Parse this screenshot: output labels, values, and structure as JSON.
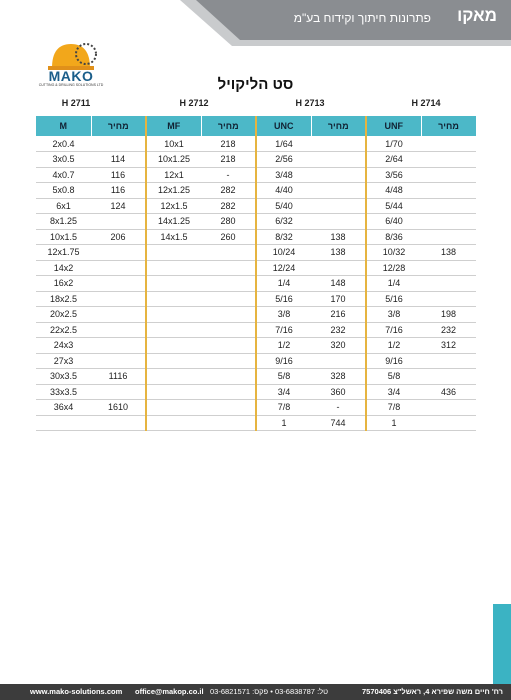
{
  "header": {
    "brand": "מאקו",
    "subtitle": "פתרונות חיתוך וקידוח בע\"מ",
    "colors": {
      "band": "#8a8d91",
      "band_light": "#c9cbcd",
      "accent": "#3bb3c3"
    }
  },
  "logo": {
    "word": "MAKO",
    "tagline": "CUTTING & DRILLING SOLUTIONS LTD"
  },
  "title": "סט הליקויל",
  "codes": [
    "H 2711",
    "H 2712",
    "H 2713",
    "H 2714"
  ],
  "table": {
    "headers": [
      "M",
      "מחיר",
      "MF",
      "מחיר",
      "UNC",
      "מחיר",
      "UNF",
      "מחיר"
    ],
    "rows": [
      [
        "2x0.4",
        "",
        "10x1",
        "218",
        "1/64",
        "",
        "1/70",
        ""
      ],
      [
        "3x0.5",
        "114",
        "10x1.25",
        "218",
        "2/56",
        "",
        "2/64",
        ""
      ],
      [
        "4x0.7",
        "116",
        "12x1",
        "-",
        "3/48",
        "",
        "3/56",
        ""
      ],
      [
        "5x0.8",
        "116",
        "12x1.25",
        "282",
        "4/40",
        "",
        "4/48",
        ""
      ],
      [
        "6x1",
        "124",
        "12x1.5",
        "282",
        "5/40",
        "",
        "5/44",
        ""
      ],
      [
        "8x1.25",
        "",
        "14x1.25",
        "280",
        "6/32",
        "",
        "6/40",
        ""
      ],
      [
        "10x1.5",
        "206",
        "14x1.5",
        "260",
        "8/32",
        "138",
        "8/36",
        ""
      ],
      [
        "12x1.75",
        "",
        "",
        "",
        "10/24",
        "138",
        "10/32",
        "138"
      ],
      [
        "14x2",
        "",
        "",
        "",
        "12/24",
        "",
        "12/28",
        ""
      ],
      [
        "16x2",
        "",
        "",
        "",
        "1/4",
        "148",
        "1/4",
        ""
      ],
      [
        "18x2.5",
        "",
        "",
        "",
        "5/16",
        "170",
        "5/16",
        ""
      ],
      [
        "20x2.5",
        "",
        "",
        "",
        "3/8",
        "216",
        "3/8",
        "198"
      ],
      [
        "22x2.5",
        "",
        "",
        "",
        "7/16",
        "232",
        "7/16",
        "232"
      ],
      [
        "24x3",
        "",
        "",
        "",
        "1/2",
        "320",
        "1/2",
        "312"
      ],
      [
        "27x3",
        "",
        "",
        "",
        "9/16",
        "",
        "9/16",
        ""
      ],
      [
        "30x3.5",
        "1116",
        "",
        "",
        "5/8",
        "328",
        "5/8",
        ""
      ],
      [
        "33x3.5",
        "",
        "",
        "",
        "3/4",
        "360",
        "3/4",
        "436"
      ],
      [
        "36x4",
        "1610",
        "",
        "",
        "7/8",
        "-",
        "7/8",
        ""
      ],
      [
        "",
        "",
        "",
        "",
        "1",
        "744",
        "1",
        ""
      ]
    ]
  },
  "footer": {
    "website": "www.mako-solutions.com",
    "email": "office@makop.co.il",
    "phones": "טל: 03-6838787 • פקס: 03-6821571",
    "address": "רח' חיים משה שפירא 4, ראשל\"צ 7570406"
  }
}
